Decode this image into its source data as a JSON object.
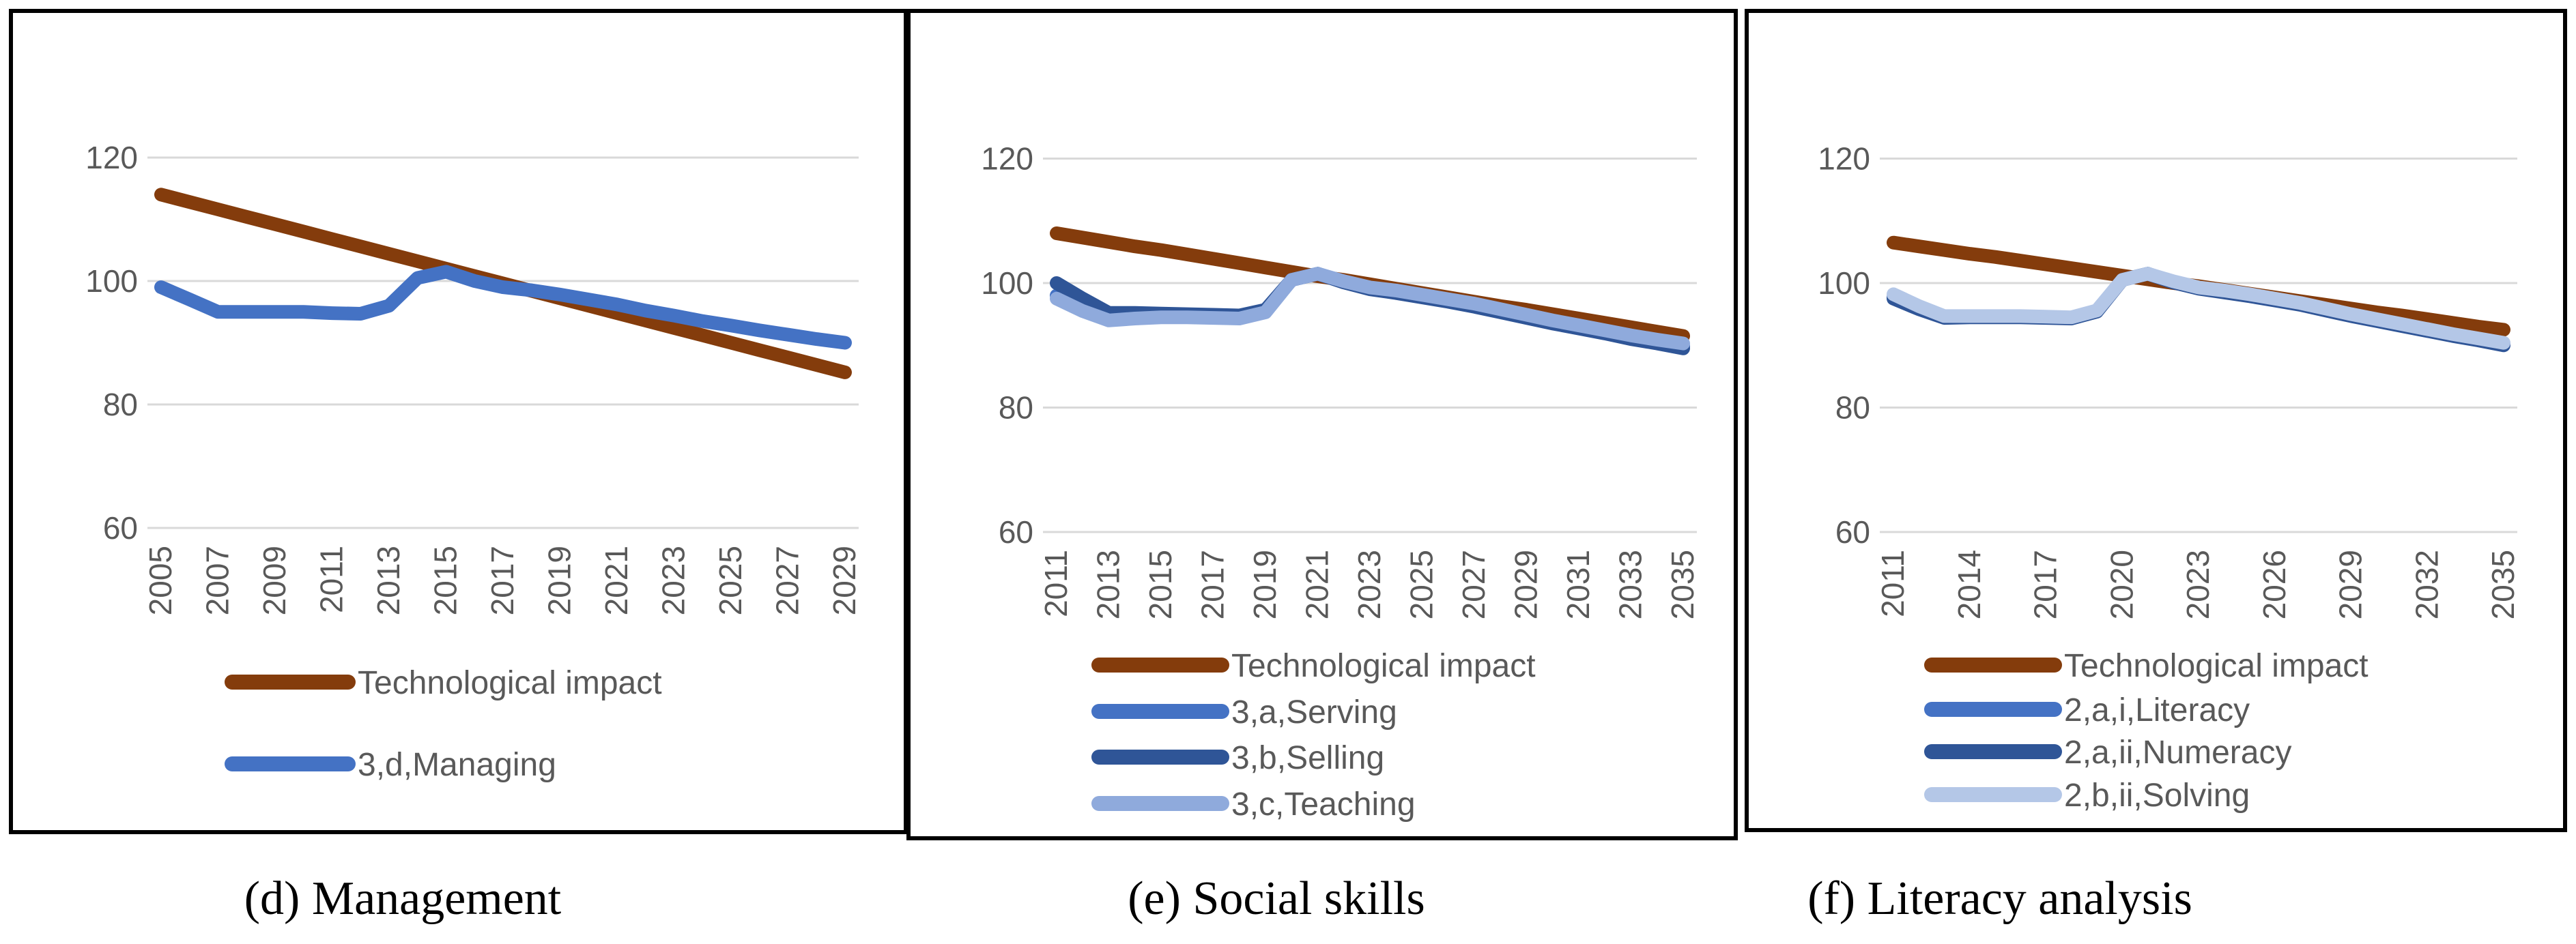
{
  "chart_data": [
    {
      "type": "line",
      "caption": "(d) Management",
      "x": [
        "2005",
        "2006",
        "2007",
        "2008",
        "2009",
        "2010",
        "2011",
        "2012",
        "2013",
        "2014",
        "2015",
        "2016",
        "2017",
        "2018",
        "2019",
        "2020",
        "2021",
        "2022",
        "2023",
        "2024",
        "2025",
        "2026",
        "2027",
        "2028",
        "2029"
      ],
      "x_tick_labels": [
        "2005",
        "2007",
        "2009",
        "2011",
        "2013",
        "2015",
        "2017",
        "2019",
        "2021",
        "2023",
        "2025",
        "2027",
        "2029"
      ],
      "y_ticks": [
        60,
        80,
        100,
        120
      ],
      "ylim": [
        60,
        140
      ],
      "grid": true,
      "legend_position": "bottom",
      "series": [
        {
          "name": "Technological impact",
          "color": "#843C0C",
          "values": [
            114.0,
            112.8,
            111.6,
            110.4,
            109.2,
            108.0,
            106.8,
            105.6,
            104.4,
            103.2,
            102.0,
            100.8,
            99.6,
            98.4,
            97.2,
            96.0,
            94.8,
            93.6,
            92.4,
            91.2,
            90.0,
            88.8,
            87.6,
            86.4,
            85.2
          ]
        },
        {
          "name": "3,d,Managing",
          "color": "#4472C4",
          "values": [
            99.0,
            97.0,
            95.0,
            95.0,
            95.0,
            95.0,
            94.8,
            94.7,
            96.0,
            100.5,
            101.5,
            100.0,
            99.0,
            98.5,
            97.8,
            97.0,
            96.2,
            95.2,
            94.4,
            93.5,
            92.8,
            92.0,
            91.3,
            90.6,
            90.0
          ]
        }
      ]
    },
    {
      "type": "line",
      "caption": "(e) Social skills",
      "x": [
        "2011",
        "2012",
        "2013",
        "2014",
        "2015",
        "2016",
        "2017",
        "2018",
        "2019",
        "2020",
        "2021",
        "2022",
        "2023",
        "2024",
        "2025",
        "2026",
        "2027",
        "2028",
        "2029",
        "2030",
        "2031",
        "2032",
        "2033",
        "2034",
        "2035"
      ],
      "x_tick_labels": [
        "2011",
        "2013",
        "2015",
        "2017",
        "2019",
        "2021",
        "2023",
        "2025",
        "2027",
        "2029",
        "2031",
        "2033",
        "2035"
      ],
      "y_ticks": [
        60,
        80,
        100,
        120
      ],
      "ylim": [
        60,
        140
      ],
      "grid": true,
      "legend_position": "bottom",
      "series": [
        {
          "name": "Technological impact",
          "color": "#843C0C",
          "values": [
            108.0,
            107.3,
            106.6,
            105.9,
            105.3,
            104.6,
            103.9,
            103.2,
            102.5,
            101.8,
            101.1,
            100.5,
            99.8,
            99.1,
            98.4,
            97.7,
            97.0,
            96.3,
            95.7,
            95.0,
            94.3,
            93.6,
            92.9,
            92.2,
            91.5
          ]
        },
        {
          "name": "3,a,Serving",
          "color": "#4472C4",
          "values": [
            98.0,
            96.0,
            94.5,
            94.7,
            94.7,
            94.7,
            94.6,
            94.5,
            95.5,
            100.5,
            101.5,
            100.2,
            99.2,
            98.6,
            97.9,
            97.2,
            96.4,
            95.5,
            94.6,
            93.7,
            92.9,
            92.1,
            91.3,
            90.6,
            89.9
          ]
        },
        {
          "name": "3,b,Selling",
          "color": "#2F5597",
          "values": [
            100.0,
            97.5,
            95.2,
            95.2,
            95.1,
            95.0,
            94.9,
            94.8,
            95.7,
            100.5,
            101.5,
            100.1,
            99.0,
            98.4,
            97.7,
            97.0,
            96.2,
            95.3,
            94.4,
            93.5,
            92.7,
            91.9,
            91.0,
            90.3,
            89.5
          ]
        },
        {
          "name": "3,c,Teaching",
          "color": "#8FAADC",
          "values": [
            97.5,
            95.5,
            94.0,
            94.3,
            94.5,
            94.5,
            94.4,
            94.3,
            95.3,
            100.5,
            101.5,
            100.3,
            99.3,
            98.8,
            98.1,
            97.4,
            96.7,
            95.8,
            94.9,
            94.0,
            93.2,
            92.4,
            91.6,
            90.9,
            90.3
          ]
        }
      ]
    },
    {
      "type": "line",
      "caption": "(f) Literacy analysis",
      "x": [
        "2011",
        "2012",
        "2013",
        "2014",
        "2015",
        "2016",
        "2017",
        "2018",
        "2019",
        "2020",
        "2021",
        "2022",
        "2023",
        "2024",
        "2025",
        "2026",
        "2027",
        "2028",
        "2029",
        "2030",
        "2031",
        "2032",
        "2033",
        "2034",
        "2035"
      ],
      "x_tick_labels": [
        "2011",
        "2014",
        "2017",
        "2020",
        "2023",
        "2026",
        "2029",
        "2032",
        "2035"
      ],
      "y_ticks": [
        60,
        80,
        100,
        120
      ],
      "ylim": [
        60,
        140
      ],
      "grid": true,
      "legend_position": "bottom",
      "series": [
        {
          "name": "Technological impact",
          "color": "#843C0C",
          "values": [
            106.5,
            105.9,
            105.3,
            104.7,
            104.2,
            103.6,
            103.0,
            102.4,
            101.8,
            101.2,
            100.6,
            100.0,
            99.5,
            98.9,
            98.3,
            97.7,
            97.1,
            96.5,
            95.9,
            95.3,
            94.8,
            94.2,
            93.6,
            93.0,
            92.5
          ]
        },
        {
          "name": "2,a,i,Literacy",
          "color": "#4472C4",
          "values": [
            97.8,
            96.0,
            94.5,
            94.6,
            94.6,
            94.6,
            94.5,
            94.4,
            95.5,
            100.5,
            101.5,
            100.2,
            99.2,
            98.6,
            98.0,
            97.3,
            96.6,
            95.7,
            94.8,
            94.0,
            93.2,
            92.4,
            91.6,
            90.9,
            90.2
          ]
        },
        {
          "name": "2,a,ii,Numeracy",
          "color": "#2F5597",
          "values": [
            97.5,
            95.8,
            94.4,
            94.5,
            94.5,
            94.5,
            94.4,
            94.3,
            95.4,
            100.5,
            101.5,
            100.1,
            99.1,
            98.5,
            97.9,
            97.2,
            96.5,
            95.6,
            94.7,
            93.9,
            93.1,
            92.3,
            91.5,
            90.8,
            90.0
          ]
        },
        {
          "name": "2,b,ii,Solving",
          "color": "#B4C7E7",
          "values": [
            98.2,
            96.3,
            94.7,
            94.7,
            94.7,
            94.7,
            94.6,
            94.5,
            95.6,
            100.5,
            101.5,
            100.3,
            99.3,
            98.8,
            98.2,
            97.5,
            96.8,
            95.9,
            95.0,
            94.2,
            93.4,
            92.6,
            91.8,
            91.1,
            90.4
          ]
        }
      ]
    }
  ]
}
